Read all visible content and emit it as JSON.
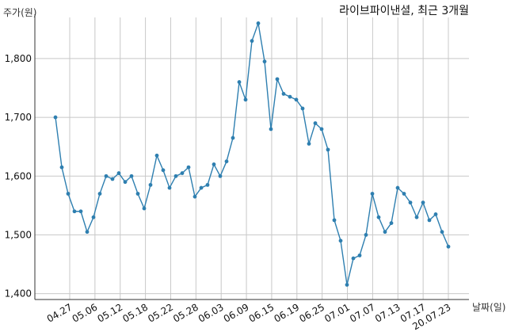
{
  "chart_data": {
    "type": "line",
    "title": "라이브파이낸셜, 최근 3개월",
    "ylabel": "주가(원)",
    "xlabel": "날짜(일)",
    "ylim": [
      1390,
      1870
    ],
    "yticks": [
      1400,
      1500,
      1600,
      1700,
      1800
    ],
    "ytick_labels": [
      "1,400",
      "1,500",
      "1,600",
      "1,700",
      "1,800"
    ],
    "x_tick_labels": [
      "04.27",
      "05.06",
      "05.12",
      "05.18",
      "05.22",
      "05.28",
      "06.03",
      "06.09",
      "06.15",
      "06.19",
      "06.25",
      "07.01",
      "07.07",
      "07.13",
      "07.17",
      "20.07.23"
    ],
    "grid": true,
    "line_color": "#2e7fb0",
    "series": [
      {
        "values": [
          1700,
          1615,
          1570,
          1540,
          1540,
          1505,
          1530,
          1570,
          1600,
          1595,
          1605,
          1590,
          1600,
          1570,
          1545,
          1585,
          1635,
          1610,
          1580,
          1600,
          1605,
          1615,
          1565,
          1580,
          1585,
          1620,
          1600,
          1625,
          1665,
          1760,
          1730,
          1830,
          1860,
          1795,
          1680,
          1765,
          1740,
          1735,
          1730,
          1715,
          1655,
          1690,
          1680,
          1645,
          1525,
          1490,
          1415,
          1460,
          1465,
          1500,
          1570,
          1530,
          1505,
          1520,
          1580,
          1570,
          1555,
          1530,
          1555,
          1525,
          1535,
          1505,
          1480
        ]
      }
    ]
  }
}
